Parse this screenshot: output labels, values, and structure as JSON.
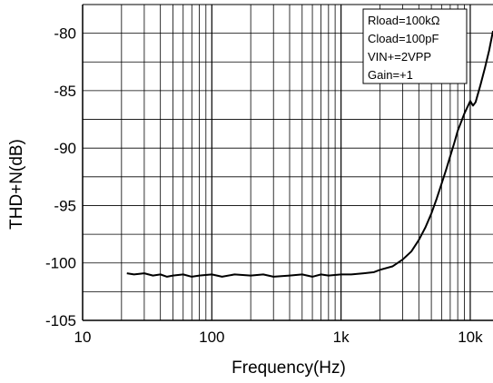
{
  "chart_data": {
    "type": "line",
    "title": "",
    "xlabel": "Frequency(Hz)",
    "ylabel": "THD+N(dB)",
    "x_scale": "log",
    "xlim": [
      10,
      15000
    ],
    "ylim": [
      -105,
      -77.5
    ],
    "grid": true,
    "x_ticks": [
      {
        "value": 10,
        "label": "10"
      },
      {
        "value": 100,
        "label": "100"
      },
      {
        "value": 1000,
        "label": "1k"
      },
      {
        "value": 10000,
        "label": "10k"
      }
    ],
    "y_ticks": [
      {
        "value": -80,
        "label": "-80"
      },
      {
        "value": -85,
        "label": "-85"
      },
      {
        "value": -90,
        "label": "-90"
      },
      {
        "value": -95,
        "label": "-95"
      },
      {
        "value": -100,
        "label": "-100"
      },
      {
        "value": -105,
        "label": "-105"
      }
    ],
    "legend_position": "top-right",
    "annotations": [
      "Rload=100kΩ",
      "Cload=100pF",
      "VIN+=2VPP",
      "Gain=+1"
    ],
    "series": [
      {
        "color": "#000000",
        "x": [
          22,
          25,
          30,
          35,
          40,
          45,
          50,
          60,
          70,
          80,
          100,
          120,
          150,
          200,
          250,
          300,
          400,
          500,
          600,
          700,
          800,
          1000,
          1200,
          1500,
          1800,
          2000,
          2500,
          3000,
          3500,
          4000,
          4500,
          5000,
          5500,
          6000,
          6500,
          7000,
          7500,
          8000,
          9000,
          10000,
          10500,
          11000,
          12000,
          13000,
          14000,
          15000
        ],
        "y": [
          -100.9,
          -101.0,
          -100.9,
          -101.1,
          -101.0,
          -101.2,
          -101.1,
          -101.0,
          -101.2,
          -101.1,
          -101.0,
          -101.2,
          -101.0,
          -101.1,
          -101.0,
          -101.2,
          -101.1,
          -101.0,
          -101.2,
          -101.0,
          -101.1,
          -101.0,
          -101.0,
          -100.9,
          -100.8,
          -100.6,
          -100.3,
          -99.7,
          -99.0,
          -98.0,
          -96.9,
          -95.7,
          -94.4,
          -93.1,
          -91.9,
          -90.7,
          -89.6,
          -88.5,
          -87.0,
          -85.9,
          -86.3,
          -86.0,
          -84.5,
          -83.0,
          -81.5,
          -79.8
        ]
      }
    ]
  }
}
